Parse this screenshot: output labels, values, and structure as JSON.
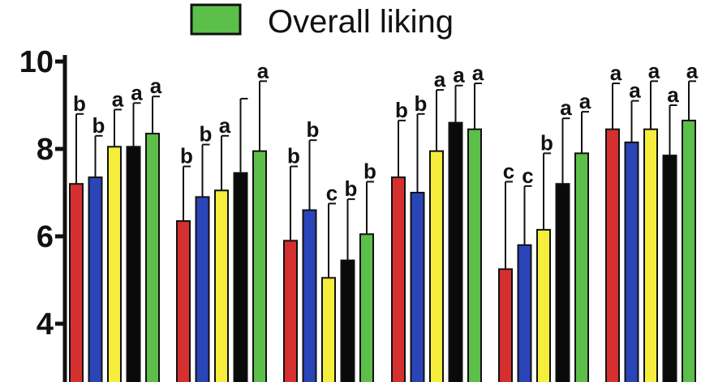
{
  "chart_data": {
    "type": "bar",
    "legend": {
      "visible_entry": "Overall liking",
      "visible_color": "#5cbf4a",
      "placement": "top"
    },
    "ylim": [
      3.3,
      10
    ],
    "yticks": [
      "4",
      "6",
      "8",
      "10"
    ],
    "grid": false,
    "bar_colors": [
      "#d62f2f",
      "#2a45b8",
      "#f5ee3c",
      "#0a0a0a",
      "#5cbf4a"
    ],
    "groups": [
      {
        "values": [
          7.2,
          7.35,
          8.05,
          8.05,
          8.35
        ],
        "error_top": [
          8.8,
          8.3,
          8.9,
          9.05,
          9.2
        ],
        "labels": [
          "b",
          "b",
          "a",
          "a",
          "a"
        ]
      },
      {
        "values": [
          6.35,
          6.9,
          7.05,
          7.45,
          7.95
        ],
        "error_top": [
          7.6,
          8.1,
          8.3,
          9.15,
          9.55
        ],
        "labels": [
          "b",
          "b",
          "a",
          "",
          "a"
        ]
      },
      {
        "values": [
          5.9,
          6.6,
          5.05,
          5.45,
          6.05
        ],
        "error_top": [
          7.6,
          8.2,
          6.75,
          6.85,
          7.25
        ],
        "labels": [
          "b",
          "b",
          "c",
          "b",
          "b"
        ]
      },
      {
        "values": [
          7.35,
          7.0,
          7.95,
          8.6,
          8.45
        ],
        "error_top": [
          8.65,
          8.8,
          9.35,
          9.45,
          9.5
        ],
        "labels": [
          "b",
          "b",
          "a",
          "a",
          "a"
        ]
      },
      {
        "values": [
          5.25,
          5.8,
          6.15,
          7.2,
          7.9
        ],
        "error_top": [
          7.25,
          7.15,
          7.9,
          8.7,
          8.85
        ],
        "labels": [
          "c",
          "c",
          "b",
          "a",
          "a"
        ]
      },
      {
        "values": [
          8.45,
          8.15,
          8.45,
          7.85,
          8.65
        ],
        "error_top": [
          9.5,
          9.1,
          9.55,
          9.0,
          9.55
        ],
        "labels": [
          "a",
          "a",
          "a",
          "a",
          "a"
        ]
      }
    ]
  }
}
